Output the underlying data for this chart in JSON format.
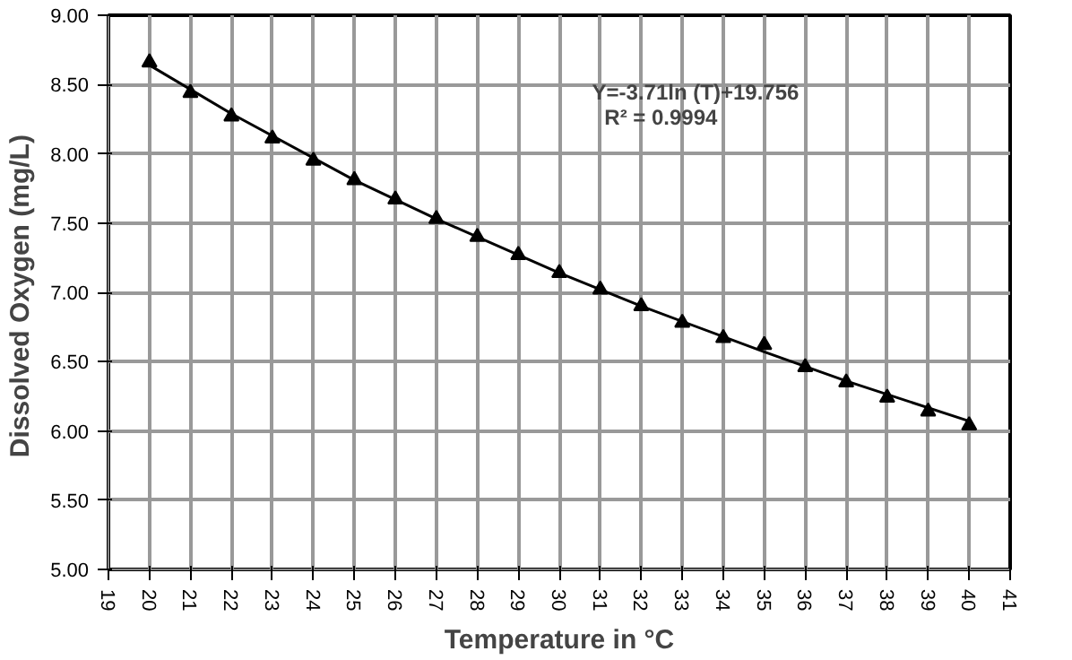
{
  "chart_data": {
    "type": "scatter",
    "xlabel": "Temperature in °C",
    "ylabel": "Dissolved  Oxygen (mg/L)",
    "annotations": [
      "Y=-3.71ln (T)+19.756",
      "R² = 0.9994"
    ],
    "x": [
      20,
      21,
      22,
      23,
      24,
      25,
      26,
      27,
      28,
      29,
      30,
      31,
      32,
      33,
      34,
      35,
      36,
      37,
      38,
      39,
      40
    ],
    "series": [
      {
        "color": "#000000",
        "marker": "triangle",
        "values": [
          8.66,
          8.44,
          8.27,
          8.11,
          7.95,
          7.81,
          7.67,
          7.53,
          7.4,
          7.27,
          7.14,
          7.02,
          6.9,
          6.78,
          6.67,
          6.62,
          6.46,
          6.35,
          6.24,
          6.14,
          6.04
        ]
      },
      {
        "type": "line",
        "color": "#000000",
        "line_style": "solid",
        "x": [
          20,
          22,
          25,
          27,
          30,
          32,
          35,
          37,
          40
        ],
        "values": [
          8.64,
          8.29,
          7.81,
          7.53,
          7.14,
          6.9,
          6.57,
          6.36,
          6.07
        ]
      }
    ],
    "xlim": [
      19,
      41
    ],
    "xticks": [
      19,
      20,
      21,
      22,
      23,
      24,
      25,
      26,
      27,
      28,
      29,
      30,
      31,
      32,
      33,
      34,
      35,
      36,
      37,
      38,
      39,
      40,
      41
    ],
    "ylim": [
      5,
      9
    ],
    "yticks": [
      {
        "value": 5,
        "label": "5.00"
      },
      {
        "value": 5.5,
        "label": "5.50"
      },
      {
        "value": 6,
        "label": "6.00"
      },
      {
        "value": 6.5,
        "label": "6.50"
      },
      {
        "value": 7,
        "label": "7.00"
      },
      {
        "value": 7.5,
        "label": "7.50"
      },
      {
        "value": 8,
        "label": "8.00"
      },
      {
        "value": 8.5,
        "label": "8.50"
      },
      {
        "value": 9,
        "label": "9.00"
      }
    ],
    "grid": true
  }
}
